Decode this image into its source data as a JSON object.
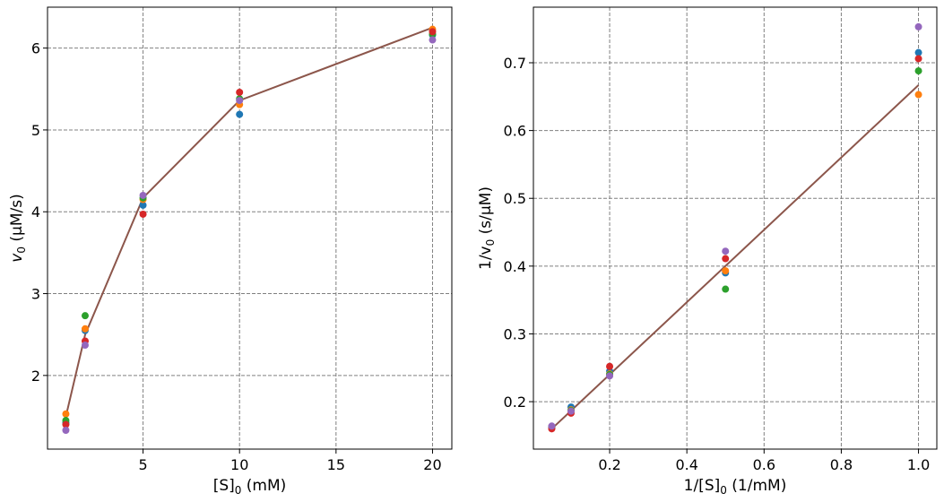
{
  "chart_data": [
    {
      "type": "scatter",
      "title": "",
      "xlabel": "[S]",
      "xlabel_sub": "0",
      "xlabel_unit": " (mM)",
      "ylabel": "v",
      "ylabel_sub": "0",
      "ylabel_unit": " (µM/s)",
      "xlim": [
        0.05,
        21.0
      ],
      "ylim": [
        1.1,
        6.5
      ],
      "xticks": [
        5,
        10,
        15,
        20
      ],
      "yticks": [
        2,
        3,
        4,
        5,
        6
      ],
      "grid": true,
      "grid_style": "dashed",
      "x": [
        1,
        2,
        5,
        10,
        20
      ],
      "series": [
        {
          "color": "#1f77b4",
          "values": [
            1.42,
            2.55,
            4.08,
            5.19,
            6.16
          ]
        },
        {
          "color": "#ff7f0e",
          "values": [
            1.53,
            2.57,
            4.15,
            5.31,
            6.23
          ]
        },
        {
          "color": "#2ca02c",
          "values": [
            1.45,
            2.73,
            4.17,
            5.38,
            6.17
          ]
        },
        {
          "color": "#d62728",
          "values": [
            1.4,
            2.42,
            3.97,
            5.46,
            6.2
          ]
        },
        {
          "color": "#9467bd",
          "values": [
            1.33,
            2.37,
            4.2,
            5.36,
            6.1
          ]
        }
      ],
      "fit_line": {
        "color": "#8c564b",
        "x": [
          1,
          2,
          5,
          10,
          20
        ],
        "y": [
          1.5,
          2.5,
          4.17,
          5.36,
          6.25
        ]
      }
    },
    {
      "type": "scatter",
      "title": "",
      "xlabel": "1/[S]",
      "xlabel_sub": "0",
      "xlabel_unit": " (1/mM)",
      "ylabel": "1/v",
      "ylabel_sub": "0",
      "ylabel_unit": " (s/µM)",
      "xlim": [
        0.0025,
        1.0475
      ],
      "ylim": [
        0.13,
        0.782
      ],
      "xticks": [
        0.2,
        0.4,
        0.6,
        0.8,
        1.0
      ],
      "xtick_labels": [
        "0.2",
        "0.4",
        "0.6",
        "0.8",
        "1.0"
      ],
      "yticks": [
        0.2,
        0.3,
        0.4,
        0.5,
        0.6,
        0.7
      ],
      "ytick_labels": [
        "0.2",
        "0.3",
        "0.4",
        "0.5",
        "0.6",
        "0.7"
      ],
      "grid": true,
      "grid_style": "dashed",
      "x": [
        0.05,
        0.1,
        0.2,
        0.5,
        1.0
      ],
      "series": [
        {
          "color": "#1f77b4",
          "values": [
            0.162,
            0.192,
            0.245,
            0.39,
            0.715
          ]
        },
        {
          "color": "#ff7f0e",
          "values": [
            0.161,
            0.188,
            0.241,
            0.393,
            0.653
          ]
        },
        {
          "color": "#2ca02c",
          "values": [
            0.162,
            0.187,
            0.24,
            0.366,
            0.688
          ]
        },
        {
          "color": "#d62728",
          "values": [
            0.16,
            0.183,
            0.252,
            0.411,
            0.706
          ]
        },
        {
          "color": "#9467bd",
          "values": [
            0.164,
            0.186,
            0.238,
            0.422,
            0.753
          ]
        }
      ],
      "fit_line": {
        "color": "#8c564b",
        "x": [
          0.05,
          1.0
        ],
        "y": [
          0.16,
          0.667
        ]
      }
    }
  ]
}
